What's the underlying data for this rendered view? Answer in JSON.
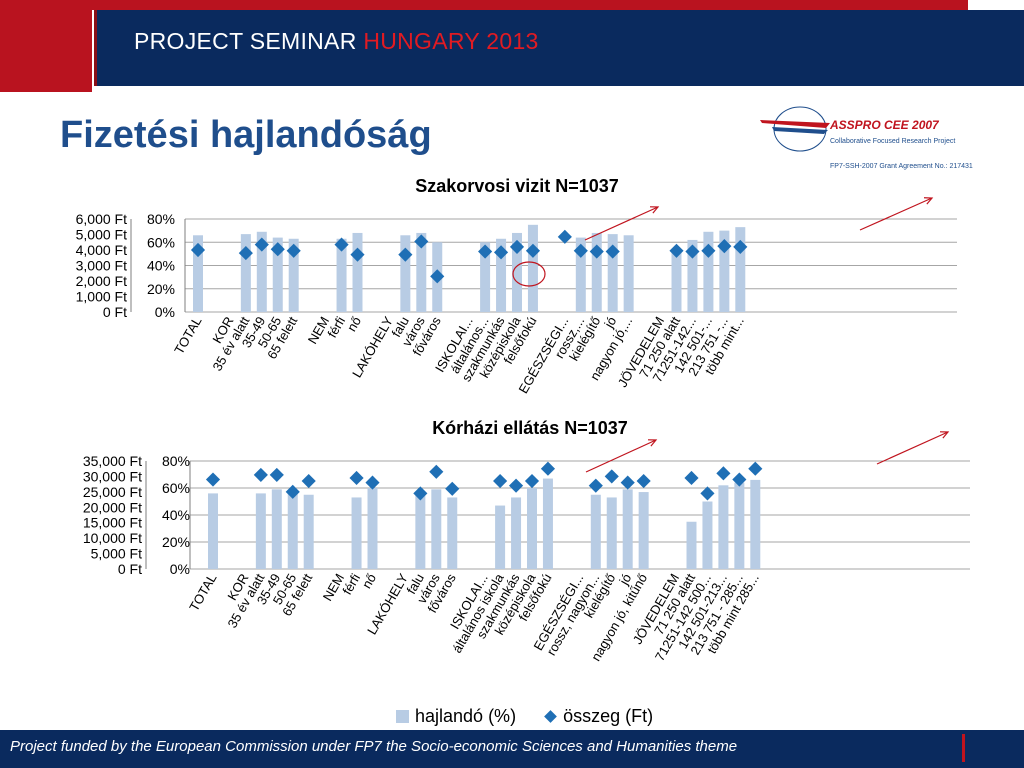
{
  "header": {
    "banner_prefix": "PROJECT SEMINAR",
    "banner_highlight": "HUNGARY 2013",
    "slide_title": "Fizetési hajlandóság"
  },
  "logo": {
    "name": "ASSPRO CEE 2007",
    "subtitle": "Collaborative Focused Research Project",
    "grant": "FP7-SSH-2007 Grant Agreement No.: 217431"
  },
  "legend": {
    "bar_label": "hajlandó (%)",
    "marker_label": "összeg (Ft)"
  },
  "footer": {
    "text": "Project funded by the European Commission under FP7 the Socio-economic Sciences and Humanities theme"
  },
  "colors": {
    "bar": "#b8cce4",
    "marker": "#1f6fb5",
    "annotation": "#c0141e",
    "navy": "#0a2a5e"
  },
  "chart_data": [
    {
      "type": "bar",
      "title": "Szakorvosi vizit N=1037",
      "left_axis_ticks": [
        "6,000 Ft",
        "5,000 Ft",
        "4,000 Ft",
        "3,000 Ft",
        "2,000 Ft",
        "1,000 Ft",
        "0 Ft"
      ],
      "right_axis_ticks": [
        "80%",
        "60%",
        "40%",
        "20%",
        "0%"
      ],
      "ylim_amount": [
        0,
        6000
      ],
      "ylim_percent": [
        0,
        80
      ],
      "grid": true,
      "categories": [
        "TOTAL",
        "",
        "KOR",
        "35 év alatt",
        "35-49",
        "50-65",
        "65 felett",
        "",
        "NEM",
        "férfi",
        "nő",
        "",
        "LAKÓHELY",
        "falu",
        "város",
        "főváros",
        "",
        "ISKOLAI...",
        "általános...",
        "szakmunkás",
        "középiskola",
        "felsőfokú",
        "",
        "EGÉSZSÉGI...",
        "rossz,...",
        "kielégítő",
        "jó",
        "nagyon jó,...",
        "",
        "JÖVEDELEM",
        "71 250 alatt",
        "71251-142...",
        "142 501-...",
        "213 751 -...",
        "több mint..."
      ],
      "series": [
        {
          "name": "hajlandó (%)",
          "values": [
            66,
            null,
            null,
            67,
            69,
            64,
            63,
            null,
            null,
            63,
            68,
            null,
            null,
            66,
            68,
            60,
            null,
            null,
            60,
            63,
            68,
            75,
            null,
            null,
            64,
            68,
            67,
            66,
            null,
            null,
            53,
            62,
            69,
            70,
            73
          ]
        },
        {
          "name": "összeg (Ft)",
          "values": [
            4000,
            null,
            null,
            3800,
            4350,
            4050,
            3950,
            null,
            null,
            4350,
            3700,
            null,
            null,
            3700,
            4550,
            2300,
            null,
            null,
            3900,
            3850,
            4200,
            3950,
            null,
            4850,
            3950,
            3900,
            3900,
            null,
            null,
            null,
            3950,
            3900,
            3950,
            4250,
            4200
          ]
        }
      ]
    },
    {
      "type": "bar",
      "title": "Kórházi ellátás N=1037",
      "left_axis_ticks": [
        "35,000 Ft",
        "30,000 Ft",
        "25,000 Ft",
        "20,000 Ft",
        "15,000 Ft",
        "10,000 Ft",
        "5,000 Ft",
        "0 Ft"
      ],
      "right_axis_ticks": [
        "80%",
        "60%",
        "40%",
        "20%",
        "0%"
      ],
      "ylim_amount": [
        0,
        35000
      ],
      "ylim_percent": [
        0,
        80
      ],
      "grid": true,
      "categories": [
        "TOTAL",
        "",
        "KOR",
        "35 év alatt",
        "35-49",
        "50-65",
        "65 felett",
        "",
        "NEM",
        "férfi",
        "nő",
        "",
        "LAKÓHELY",
        "falu",
        "város",
        "főváros",
        "",
        "ISKOLAI...",
        "általános iskola",
        "szakmunkás",
        "középiskola",
        "felsőfokú",
        "",
        "EGÉSZSÉGI...",
        "rossz, nagyon...",
        "kielégítő",
        "jó",
        "nagyon jó, kitűnő",
        "",
        "JÖVEDELEM",
        "71 250 alatt",
        "71251-142 500...",
        "142 501-213...",
        "213 751 - 285...",
        "több mint 285..."
      ],
      "series": [
        {
          "name": "hajlandó (%)",
          "values": [
            56,
            null,
            null,
            56,
            59,
            57,
            55,
            null,
            null,
            53,
            60,
            null,
            null,
            57,
            59,
            53,
            null,
            null,
            47,
            53,
            60,
            67,
            null,
            null,
            55,
            53,
            59,
            57,
            null,
            null,
            35,
            50,
            62,
            64,
            66
          ]
        },
        {
          "name": "összeg (Ft)",
          "values": [
            29000,
            null,
            null,
            30500,
            30500,
            25000,
            28500,
            null,
            null,
            29500,
            28000,
            null,
            null,
            24500,
            31500,
            26000,
            null,
            null,
            28500,
            27000,
            28500,
            32500,
            null,
            null,
            27000,
            30000,
            28000,
            28500,
            null,
            null,
            29500,
            24500,
            31000,
            29000,
            32500
          ]
        }
      ]
    }
  ]
}
